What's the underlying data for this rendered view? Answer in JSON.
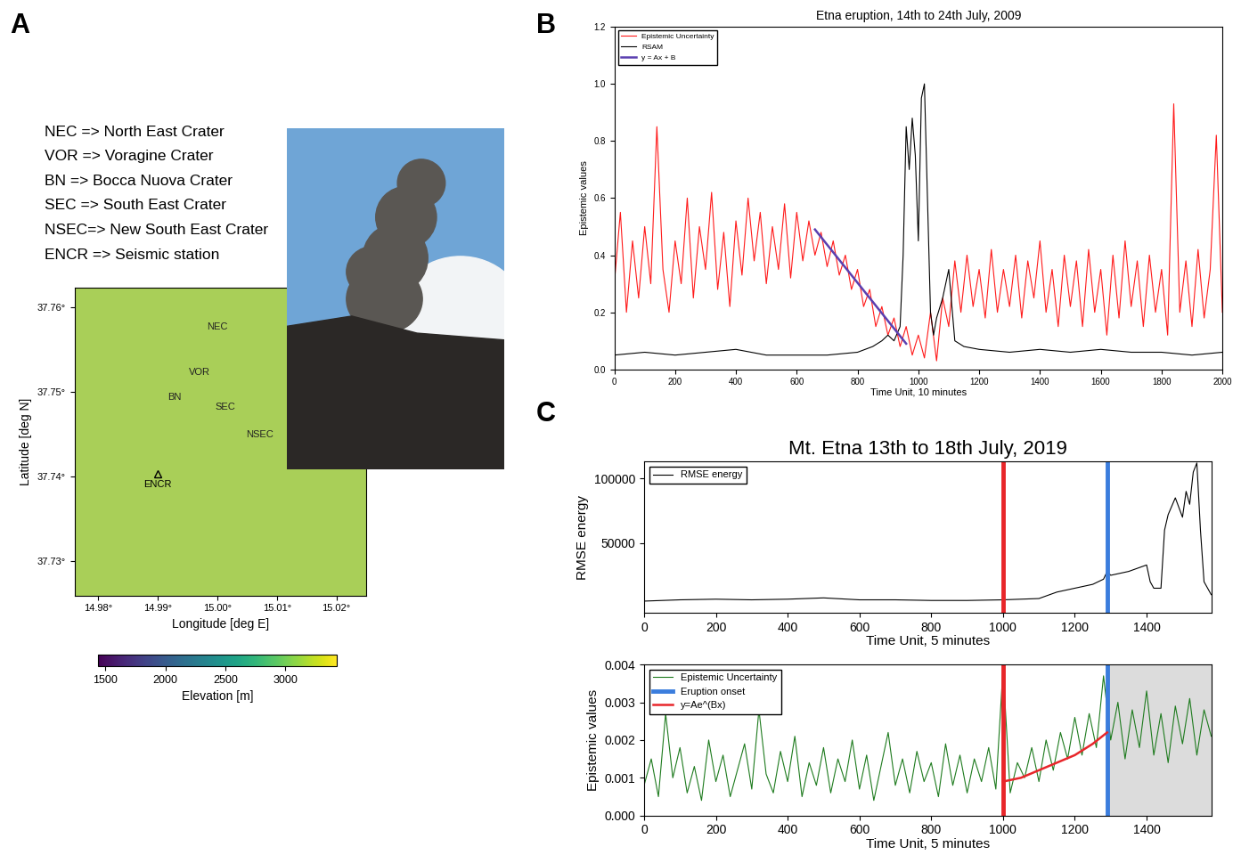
{
  "chart_data": [
    {
      "type": "map",
      "panel": "A",
      "annotations": [
        "NEC => North East Crater",
        "VOR => Voragine Crater",
        "BN => Bocca Nuova Crater",
        "SEC => South East Crater",
        "NSEC=> New South East Crater",
        "ENCR => Seismic station"
      ],
      "xlabel": "Longitude [deg E]",
      "ylabel": "Latitude [deg N]",
      "xlim": [
        14.976,
        15.025
      ],
      "xticks": [
        {
          "value": 14.98,
          "label": "14.98°"
        },
        {
          "value": 14.99,
          "label": "14.99°"
        },
        {
          "value": 15.0,
          "label": "15.00°"
        },
        {
          "value": 15.01,
          "label": "15.01°"
        },
        {
          "value": 15.02,
          "label": "15.02°"
        }
      ],
      "ylim": [
        37.726,
        37.7623
      ],
      "yticks": [
        {
          "value": 37.73,
          "label": "37.73°"
        },
        {
          "value": 37.74,
          "label": "37.74°"
        },
        {
          "value": 37.75,
          "label": "37.75°"
        },
        {
          "value": 37.76,
          "label": "37.76°"
        }
      ],
      "points": [
        {
          "name": "NEC",
          "lon": 15.0,
          "lat": 37.7576
        },
        {
          "name": "VOR",
          "lon": 14.997,
          "lat": 37.7523
        },
        {
          "name": "BN",
          "lon": 14.9928,
          "lat": 37.7494
        },
        {
          "name": "SEC",
          "lon": 15.0013,
          "lat": 37.7482
        },
        {
          "name": "NSEC",
          "lon": 15.0071,
          "lat": 37.7449
        }
      ],
      "station": {
        "name": "ENCR",
        "lon": 14.99,
        "lat": 37.7403,
        "marker": "triangle"
      },
      "colorbar": {
        "label": "Elevation [m]",
        "range": [
          1440,
          3425
        ],
        "ticks": [
          1500,
          2000,
          2500,
          3000
        ]
      }
    },
    {
      "type": "line",
      "panel": "B",
      "title": "Etna eruption, 14th to 24th July, 2009",
      "xlabel": "Time Unit, 10 minutes",
      "ylabel": "Epistemic values",
      "xlim": [
        0,
        2000
      ],
      "xticks": [
        0,
        200,
        400,
        600,
        800,
        1000,
        1200,
        1400,
        1600,
        1800,
        2000
      ],
      "ylim": [
        0,
        1.2
      ],
      "yticks": [
        {
          "value": 0,
          "label": "0.0"
        },
        0.2,
        0.4,
        0.6,
        0.8,
        {
          "value": 1,
          "label": "1.0"
        },
        1.2
      ],
      "legend": "upper left",
      "series": [
        {
          "name": "Epistemic Uncertainty",
          "color": "#ff1a1a",
          "x": [
            0,
            20,
            40,
            60,
            80,
            100,
            120,
            140,
            160,
            180,
            200,
            220,
            240,
            260,
            280,
            300,
            320,
            340,
            360,
            380,
            400,
            420,
            440,
            460,
            480,
            500,
            520,
            540,
            560,
            580,
            600,
            620,
            640,
            660,
            680,
            700,
            720,
            740,
            760,
            780,
            800,
            820,
            840,
            860,
            880,
            900,
            920,
            940,
            960,
            980,
            1000,
            1020,
            1040,
            1060,
            1080,
            1100,
            1120,
            1140,
            1160,
            1180,
            1200,
            1220,
            1240,
            1260,
            1280,
            1300,
            1320,
            1340,
            1360,
            1380,
            1400,
            1420,
            1440,
            1460,
            1480,
            1500,
            1520,
            1540,
            1560,
            1580,
            1600,
            1620,
            1640,
            1660,
            1680,
            1700,
            1720,
            1740,
            1760,
            1780,
            1800,
            1820,
            1840,
            1860,
            1880,
            1900,
            1920,
            1940,
            1960,
            1980,
            2000
          ],
          "values": [
            0.3,
            0.55,
            0.2,
            0.45,
            0.25,
            0.5,
            0.3,
            0.85,
            0.35,
            0.2,
            0.45,
            0.3,
            0.6,
            0.25,
            0.5,
            0.35,
            0.62,
            0.28,
            0.48,
            0.22,
            0.52,
            0.33,
            0.6,
            0.38,
            0.55,
            0.3,
            0.5,
            0.35,
            0.58,
            0.32,
            0.55,
            0.38,
            0.52,
            0.4,
            0.48,
            0.36,
            0.45,
            0.33,
            0.4,
            0.28,
            0.35,
            0.22,
            0.28,
            0.15,
            0.22,
            0.12,
            0.18,
            0.08,
            0.15,
            0.05,
            0.12,
            0.04,
            0.2,
            0.03,
            0.25,
            0.15,
            0.38,
            0.2,
            0.4,
            0.22,
            0.35,
            0.18,
            0.42,
            0.2,
            0.35,
            0.22,
            0.4,
            0.18,
            0.38,
            0.25,
            0.45,
            0.2,
            0.35,
            0.15,
            0.4,
            0.22,
            0.38,
            0.15,
            0.42,
            0.2,
            0.35,
            0.12,
            0.4,
            0.18,
            0.45,
            0.22,
            0.38,
            0.15,
            0.4,
            0.2,
            0.35,
            0.12,
            0.93,
            0.2,
            0.38,
            0.15,
            0.42,
            0.18,
            0.35,
            0.82,
            0.2
          ]
        },
        {
          "name": "RSAM",
          "color": "#000000",
          "x": [
            0,
            100,
            200,
            300,
            400,
            500,
            600,
            700,
            800,
            850,
            880,
            900,
            920,
            940,
            950,
            960,
            970,
            980,
            990,
            1000,
            1010,
            1020,
            1030,
            1040,
            1050,
            1060,
            1080,
            1100,
            1120,
            1150,
            1200,
            1300,
            1400,
            1500,
            1600,
            1700,
            1800,
            1900,
            2000
          ],
          "values": [
            0.05,
            0.06,
            0.05,
            0.06,
            0.07,
            0.05,
            0.05,
            0.05,
            0.06,
            0.08,
            0.1,
            0.12,
            0.1,
            0.15,
            0.4,
            0.85,
            0.7,
            0.88,
            0.75,
            0.45,
            0.95,
            1.0,
            0.6,
            0.2,
            0.12,
            0.18,
            0.25,
            0.35,
            0.1,
            0.08,
            0.07,
            0.06,
            0.07,
            0.06,
            0.07,
            0.06,
            0.06,
            0.05,
            0.06
          ]
        },
        {
          "name": "y = Ax + B",
          "color": "#5a3fb0",
          "x": [
            660,
            960
          ],
          "values": [
            0.49,
            0.09
          ]
        }
      ]
    },
    {
      "type": "line",
      "panel": "C",
      "title": "Mt. Etna 13th to 18th July, 2019",
      "xlabel": "Time Unit, 5 minutes",
      "ylabel": "RMSE energy",
      "xlim": [
        0,
        1580
      ],
      "xticks": [
        0,
        200,
        400,
        600,
        800,
        1000,
        1200,
        1400
      ],
      "ylim": [
        -4000,
        113000
      ],
      "yticks": [
        50000,
        100000
      ],
      "legend": "upper left",
      "series": [
        {
          "name": "RMSE energy",
          "color": "#000000",
          "x": [
            0,
            100,
            200,
            300,
            400,
            500,
            600,
            700,
            800,
            900,
            1000,
            1100,
            1150,
            1200,
            1250,
            1280,
            1290,
            1300,
            1350,
            1400,
            1410,
            1420,
            1440,
            1450,
            1460,
            1480,
            1500,
            1510,
            1520,
            1530,
            1540,
            1550,
            1560,
            1580
          ],
          "values": [
            5000,
            6000,
            6500,
            6000,
            6500,
            7500,
            6000,
            6000,
            5500,
            5500,
            6000,
            7000,
            12000,
            15000,
            18000,
            22000,
            28000,
            25000,
            28000,
            33000,
            20000,
            15000,
            15000,
            60000,
            72000,
            85000,
            70000,
            90000,
            80000,
            105000,
            112000,
            60000,
            20000,
            10000
          ]
        },
        {
          "type": "vline",
          "color": "#e8262a",
          "x": 1000
        },
        {
          "type": "vline",
          "color": "#3b7ddd",
          "x": 1290
        }
      ]
    },
    {
      "type": "line",
      "xlabel": "Time Unit, 5 minutes",
      "ylabel": "Epistemic values",
      "xlim": [
        0,
        1580
      ],
      "xticks": [
        0,
        200,
        400,
        600,
        800,
        1000,
        1200,
        1400
      ],
      "ylim": [
        0,
        0.004
      ],
      "yticks": [
        {
          "value": 0,
          "label": "0.000"
        },
        0.001,
        0.002,
        0.003,
        0.004
      ],
      "legend": "upper left",
      "shaded": [
        1290,
        1580
      ],
      "series": [
        {
          "name": "Epistemic Uncertainty",
          "color": "#1e7b1e",
          "x": [
            0,
            20,
            40,
            60,
            80,
            100,
            120,
            140,
            160,
            180,
            200,
            220,
            240,
            260,
            280,
            300,
            320,
            340,
            360,
            380,
            400,
            420,
            440,
            460,
            480,
            500,
            520,
            540,
            560,
            580,
            600,
            620,
            640,
            660,
            680,
            700,
            720,
            740,
            760,
            780,
            800,
            820,
            840,
            860,
            880,
            900,
            920,
            940,
            960,
            980,
            1000,
            1020,
            1040,
            1060,
            1080,
            1100,
            1120,
            1140,
            1160,
            1180,
            1200,
            1220,
            1240,
            1260,
            1280,
            1300,
            1320,
            1340,
            1360,
            1380,
            1400,
            1420,
            1440,
            1460,
            1480,
            1500,
            1520,
            1540,
            1560,
            1580
          ],
          "values": [
            0.0008,
            0.0015,
            0.0005,
            0.0027,
            0.001,
            0.0018,
            0.0006,
            0.0013,
            0.0004,
            0.002,
            0.0009,
            0.0016,
            0.0005,
            0.0012,
            0.0019,
            0.0007,
            0.0028,
            0.0011,
            0.0006,
            0.0017,
            0.0009,
            0.0021,
            0.0005,
            0.0014,
            0.0008,
            0.0018,
            0.0006,
            0.0015,
            0.0009,
            0.002,
            0.0007,
            0.0016,
            0.0004,
            0.0013,
            0.0022,
            0.0008,
            0.0015,
            0.0006,
            0.0017,
            0.0009,
            0.0014,
            0.0005,
            0.0019,
            0.0008,
            0.0016,
            0.0006,
            0.0015,
            0.0009,
            0.0018,
            0.0007,
            0.0039,
            0.0006,
            0.0014,
            0.001,
            0.0018,
            0.0009,
            0.002,
            0.0012,
            0.0022,
            0.0015,
            0.0026,
            0.0016,
            0.0027,
            0.0018,
            0.0037,
            0.002,
            0.003,
            0.0015,
            0.0028,
            0.0018,
            0.0033,
            0.0016,
            0.0027,
            0.0014,
            0.0029,
            0.0019,
            0.0031,
            0.0016,
            0.0028,
            0.0021
          ]
        },
        {
          "name": "Eruption onset",
          "type": "vline",
          "color": "#3b7ddd",
          "x": 1290
        },
        {
          "name": "y=Ae^(Bx)",
          "color": "#e8262a",
          "x": [
            1000,
            1050,
            1100,
            1150,
            1200,
            1250,
            1290
          ],
          "values": [
            0.0009,
            0.001,
            0.0012,
            0.0014,
            0.0016,
            0.0019,
            0.0022
          ]
        },
        {
          "type": "vline",
          "color": "#e8262a",
          "x": 1000
        }
      ]
    }
  ]
}
